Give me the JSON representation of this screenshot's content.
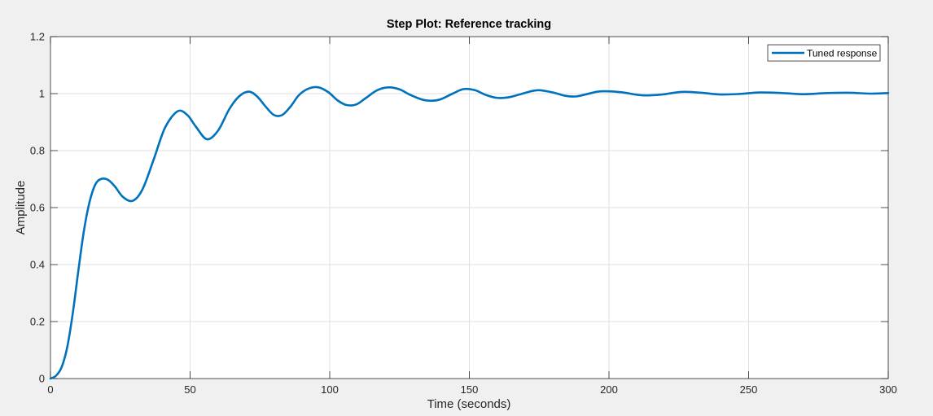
{
  "chart_data": {
    "type": "line",
    "title": "Step Plot: Reference tracking",
    "xlabel": "Time (seconds)",
    "ylabel": "Amplitude",
    "xlim": [
      0,
      300
    ],
    "ylim": [
      0,
      1.2
    ],
    "x_ticks": [
      0,
      50,
      100,
      150,
      200,
      250,
      300
    ],
    "y_ticks": [
      0,
      0.2,
      0.4,
      0.6,
      0.8,
      1,
      1.2
    ],
    "x_tick_labels": [
      "0",
      "50",
      "100",
      "150",
      "200",
      "250",
      "300"
    ],
    "y_tick_labels": [
      "0",
      "0.2",
      "0.4",
      "0.6",
      "0.8",
      "1",
      "1.2"
    ],
    "grid": true,
    "legend_position": "top-right",
    "series": [
      {
        "name": "Tuned response",
        "color": "#0072bd",
        "x": [
          0,
          2,
          4,
          6,
          8,
          10,
          12,
          14,
          16,
          18,
          20.5,
          23,
          26,
          29.5,
          33,
          37,
          41,
          45.5,
          49,
          52,
          56,
          60,
          64,
          67.5,
          71,
          74,
          77,
          80,
          83,
          86,
          89,
          92.5,
          96,
          99.5,
          103,
          106,
          109.5,
          113,
          117,
          121,
          125,
          129,
          134,
          139,
          144,
          148,
          152,
          156,
          160,
          164,
          168,
          172,
          175,
          180,
          184,
          188,
          192,
          196,
          200,
          205,
          212,
          219,
          226,
          233,
          240,
          247,
          254,
          262,
          270,
          278,
          286,
          294,
          300
        ],
        "y": [
          0,
          0.01,
          0.04,
          0.11,
          0.23,
          0.38,
          0.52,
          0.62,
          0.68,
          0.7,
          0.698,
          0.675,
          0.637,
          0.624,
          0.665,
          0.77,
          0.88,
          0.938,
          0.925,
          0.885,
          0.84,
          0.87,
          0.945,
          0.99,
          1.007,
          0.99,
          0.955,
          0.925,
          0.925,
          0.955,
          0.995,
          1.018,
          1.022,
          1.005,
          0.975,
          0.96,
          0.962,
          0.985,
          1.012,
          1.022,
          1.015,
          0.995,
          0.977,
          0.978,
          1.0,
          1.016,
          1.012,
          0.995,
          0.985,
          0.987,
          0.997,
          1.008,
          1.012,
          1.004,
          0.993,
          0.99,
          0.998,
          1.007,
          1.008,
          1.004,
          0.994,
          0.997,
          1.006,
          1.003,
          0.997,
          0.999,
          1.004,
          1.002,
          0.998,
          1.002,
          1.003,
          1.0,
          1.002
        ]
      }
    ]
  }
}
